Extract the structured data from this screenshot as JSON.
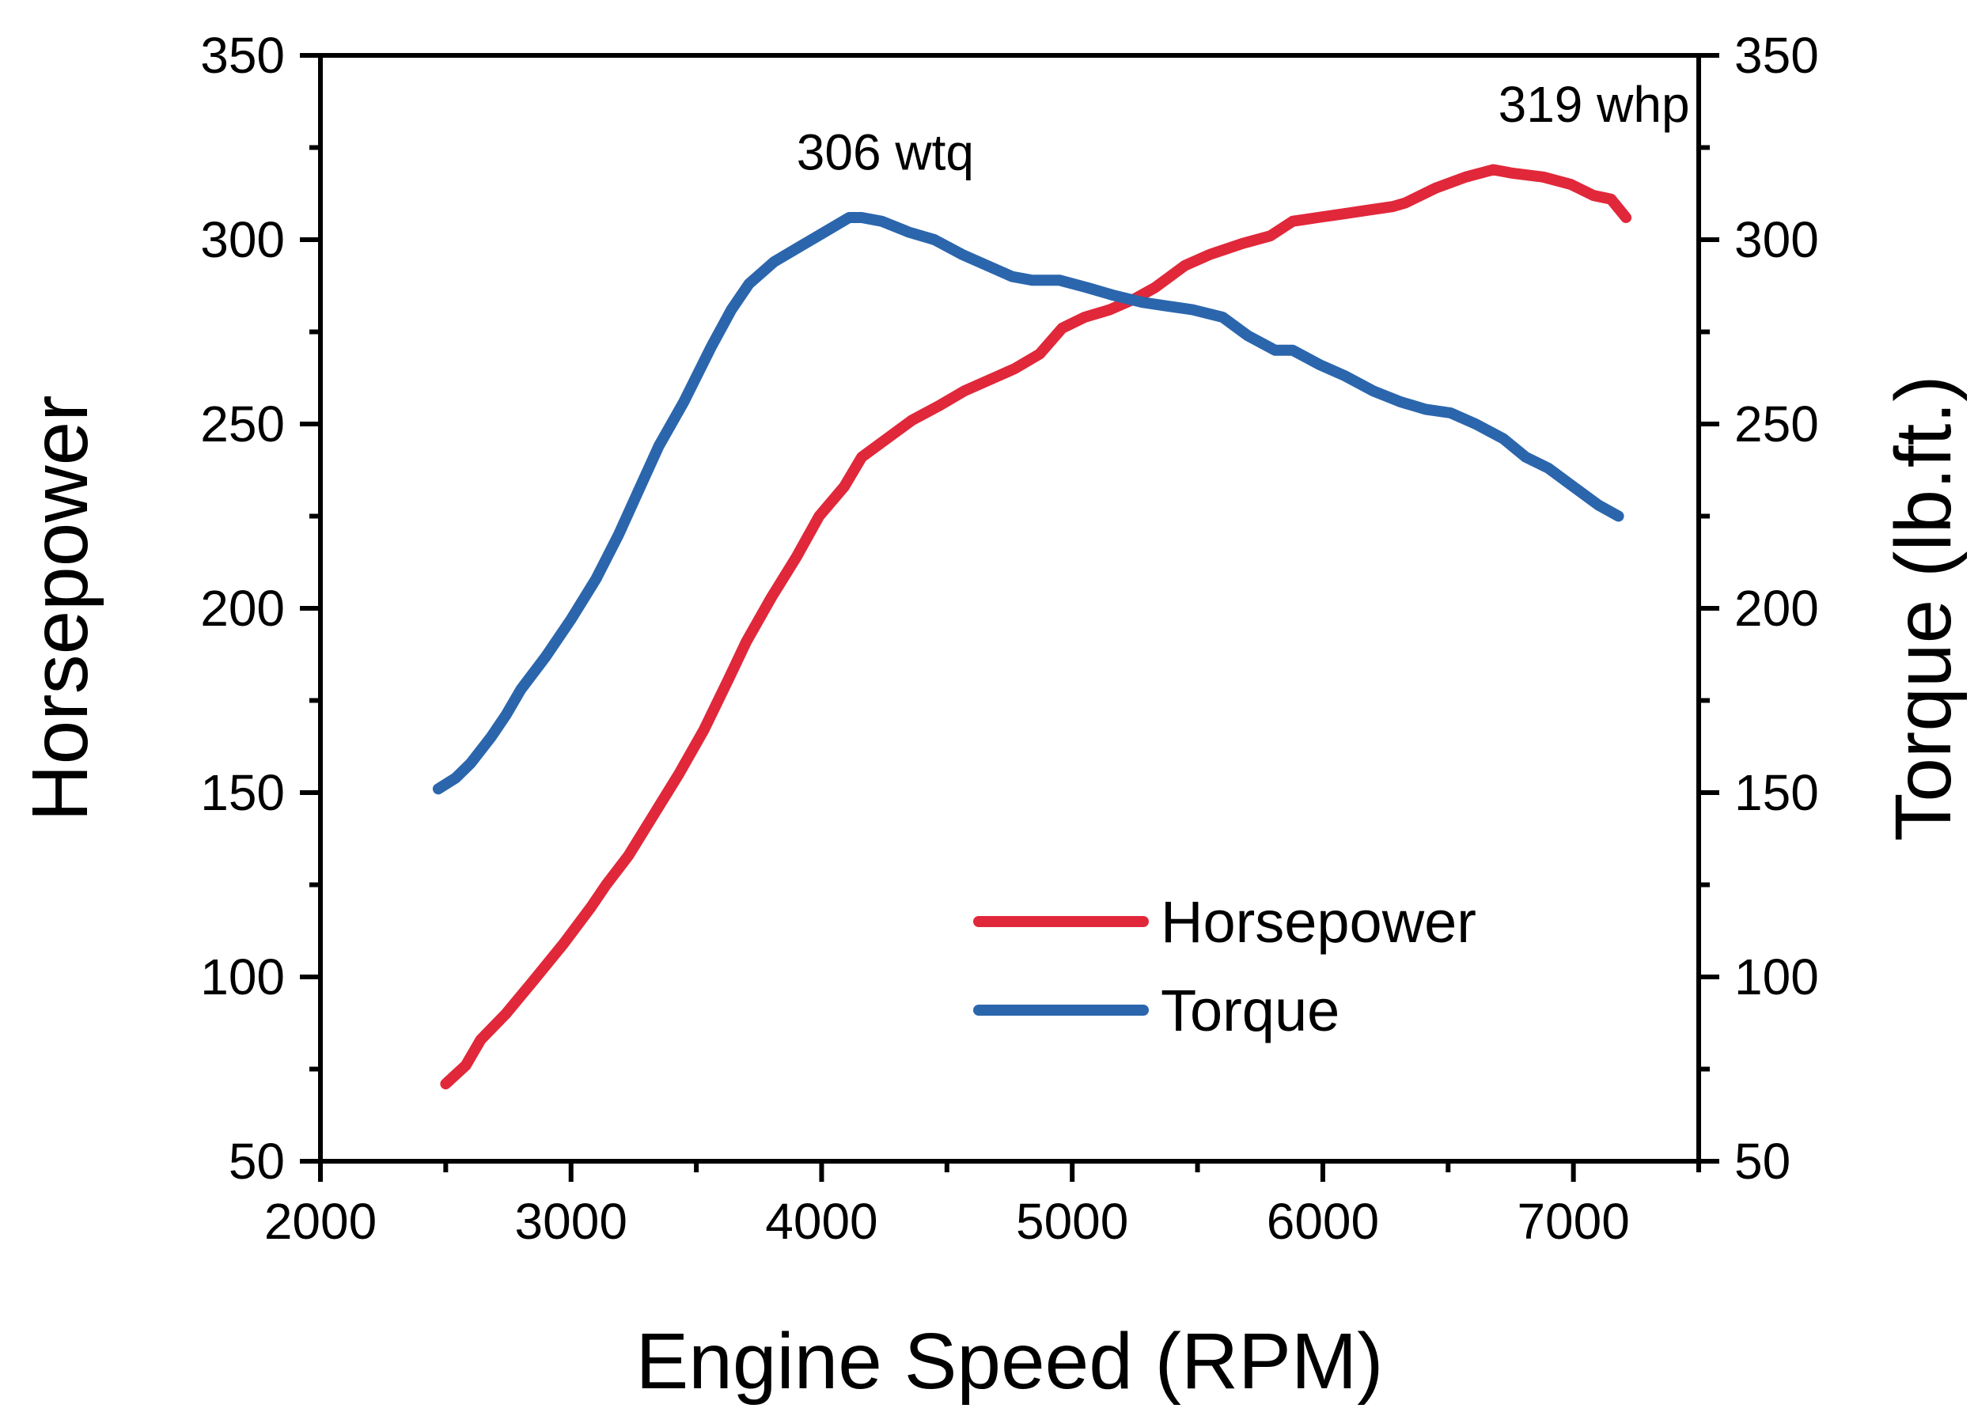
{
  "chart_data": {
    "type": "line",
    "title": "",
    "xlabel": "Engine Speed (RPM)",
    "ylabel_left": "Horsepower",
    "ylabel_right": "Torque (lb.ft.)",
    "xlim": [
      2000,
      7500
    ],
    "ylim_left": [
      50,
      350
    ],
    "ylim_right": [
      50,
      350
    ],
    "x_ticks": [
      "2000",
      "3000",
      "4000",
      "5000",
      "6000",
      "7000"
    ],
    "y_ticks_left": [
      "50",
      "100",
      "150",
      "200",
      "250",
      "300",
      "350"
    ],
    "y_ticks_right": [
      "50",
      "100",
      "150",
      "200",
      "250",
      "300",
      "350"
    ],
    "grid": false,
    "legend_position": "bottom-right",
    "series": [
      {
        "name": "Horsepower",
        "axis": "left",
        "color": "#e0283a",
        "x": [
          2500,
          2580,
          2640,
          2740,
          2850,
          2970,
          3080,
          3140,
          3230,
          3330,
          3430,
          3530,
          3630,
          3700,
          3800,
          3900,
          3990,
          4090,
          4160,
          4260,
          4360,
          4470,
          4570,
          4670,
          4770,
          4870,
          4960,
          5050,
          5150,
          5250,
          5330,
          5450,
          5550,
          5680,
          5790,
          5880,
          5980,
          6080,
          6180,
          6280,
          6330,
          6450,
          6570,
          6680,
          6760,
          6880,
          6990,
          7080,
          7150,
          7210
        ],
        "y": [
          71,
          76,
          83,
          90,
          99,
          109,
          119,
          125,
          133,
          144,
          155,
          167,
          181,
          191,
          203,
          214,
          225,
          233,
          241,
          246,
          251,
          255,
          259,
          262,
          265,
          269,
          276,
          279,
          281,
          284,
          287,
          293,
          296,
          299,
          301,
          305,
          306,
          307,
          308,
          309,
          310,
          314,
          317,
          319,
          318,
          317,
          315,
          312,
          311,
          306
        ]
      },
      {
        "name": "Torque",
        "axis": "right",
        "color": "#2b66ad",
        "x": [
          2470,
          2540,
          2600,
          2680,
          2740,
          2800,
          2900,
          3000,
          3100,
          3190,
          3270,
          3350,
          3450,
          3560,
          3640,
          3710,
          3810,
          3910,
          4010,
          4110,
          4160,
          4240,
          4350,
          4450,
          4560,
          4660,
          4760,
          4840,
          4950,
          5060,
          5160,
          5280,
          5380,
          5480,
          5600,
          5700,
          5810,
          5880,
          5990,
          6090,
          6200,
          6310,
          6410,
          6510,
          6610,
          6720,
          6810,
          6900,
          7000,
          7100,
          7180
        ],
        "y": [
          151,
          154,
          158,
          165,
          171,
          178,
          187,
          197,
          208,
          220,
          232,
          244,
          256,
          271,
          281,
          288,
          294,
          298,
          302,
          306,
          306,
          305,
          302,
          300,
          296,
          293,
          290,
          289,
          289,
          287,
          285,
          283,
          282,
          281,
          279,
          274,
          270,
          270,
          266,
          263,
          259,
          256,
          254,
          253,
          250,
          246,
          241,
          238,
          233,
          228,
          225
        ]
      }
    ],
    "annotations": [
      {
        "text": "306 wtq",
        "x": 3900,
        "y": 319,
        "axis": "left"
      },
      {
        "text": "319 whp",
        "x": 6700,
        "y": 332,
        "axis": "left"
      }
    ]
  }
}
